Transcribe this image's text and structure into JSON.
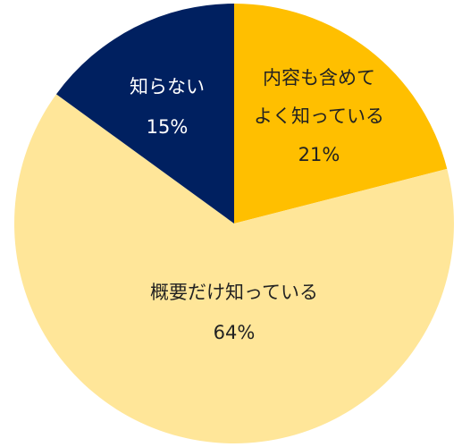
{
  "chart_data": {
    "type": "pie",
    "start_angle_deg": 0,
    "direction": "clockwise",
    "slices": [
      {
        "label_lines": [
          "内容も含めて",
          "よく知っている"
        ],
        "value": 21,
        "value_label": "21%",
        "color": "#FFBF00",
        "text_color": "#222222"
      },
      {
        "label_lines": [
          "概要だけ知っている"
        ],
        "value": 64,
        "value_label": "64%",
        "color": "#FFE699",
        "text_color": "#222222"
      },
      {
        "label_lines": [
          "知らない"
        ],
        "value": 15,
        "value_label": "15%",
        "color": "#002060",
        "text_color": "#FFFFFF"
      }
    ],
    "legend": "none"
  }
}
